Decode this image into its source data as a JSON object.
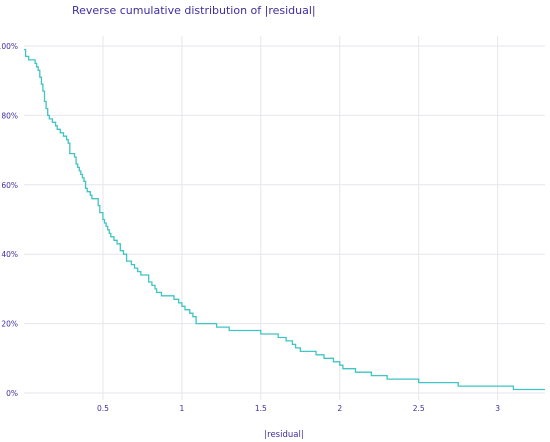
{
  "chart_data": {
    "type": "line",
    "title": "Reverse cumulative distribution of |residual|",
    "xlabel": "|residual|",
    "ylabel": "",
    "xlim": [
      0.0,
      3.3
    ],
    "ylim": [
      0,
      100
    ],
    "grid": true,
    "x_ticks": [
      {
        "value": 0.5,
        "label": "0.5"
      },
      {
        "value": 1.0,
        "label": "1"
      },
      {
        "value": 1.5,
        "label": "1.5"
      },
      {
        "value": 2.0,
        "label": "2"
      },
      {
        "value": 2.5,
        "label": "2.5"
      },
      {
        "value": 3.0,
        "label": "3"
      }
    ],
    "y_ticks": [
      {
        "value": 0,
        "label": "0%"
      },
      {
        "value": 20,
        "label": "20%"
      },
      {
        "value": 40,
        "label": "40%"
      },
      {
        "value": 60,
        "label": "60%"
      },
      {
        "value": 80,
        "label": "80%"
      },
      {
        "value": 100,
        "label": "100%"
      }
    ],
    "series": [
      {
        "name": "",
        "color": "#40c4c4",
        "step": true,
        "points": [
          [
            0.0,
            99
          ],
          [
            0.01,
            97
          ],
          [
            0.03,
            96
          ],
          [
            0.07,
            95
          ],
          [
            0.08,
            94
          ],
          [
            0.09,
            93
          ],
          [
            0.1,
            91
          ],
          [
            0.11,
            89
          ],
          [
            0.12,
            87
          ],
          [
            0.13,
            84
          ],
          [
            0.14,
            82
          ],
          [
            0.15,
            80
          ],
          [
            0.16,
            79
          ],
          [
            0.18,
            78
          ],
          [
            0.2,
            77
          ],
          [
            0.21,
            76
          ],
          [
            0.23,
            75
          ],
          [
            0.25,
            74
          ],
          [
            0.27,
            73
          ],
          [
            0.28,
            72
          ],
          [
            0.29,
            69
          ],
          [
            0.32,
            68
          ],
          [
            0.33,
            66
          ],
          [
            0.34,
            65
          ],
          [
            0.35,
            64
          ],
          [
            0.36,
            63
          ],
          [
            0.37,
            62
          ],
          [
            0.38,
            61
          ],
          [
            0.39,
            59
          ],
          [
            0.4,
            58
          ],
          [
            0.42,
            57
          ],
          [
            0.43,
            56
          ],
          [
            0.47,
            54
          ],
          [
            0.48,
            52
          ],
          [
            0.5,
            50
          ],
          [
            0.51,
            49
          ],
          [
            0.52,
            48
          ],
          [
            0.53,
            47
          ],
          [
            0.54,
            46
          ],
          [
            0.55,
            45
          ],
          [
            0.57,
            44
          ],
          [
            0.59,
            43
          ],
          [
            0.61,
            41
          ],
          [
            0.63,
            40
          ],
          [
            0.65,
            38
          ],
          [
            0.68,
            37
          ],
          [
            0.7,
            36
          ],
          [
            0.72,
            35
          ],
          [
            0.74,
            34
          ],
          [
            0.79,
            32
          ],
          [
            0.81,
            31
          ],
          [
            0.83,
            30
          ],
          [
            0.84,
            29
          ],
          [
            0.87,
            28
          ],
          [
            0.93,
            28
          ],
          [
            0.95,
            27
          ],
          [
            0.98,
            26
          ],
          [
            1.0,
            25
          ],
          [
            1.02,
            24
          ],
          [
            1.05,
            23
          ],
          [
            1.07,
            22
          ],
          [
            1.09,
            20
          ],
          [
            1.2,
            20
          ],
          [
            1.22,
            19
          ],
          [
            1.3,
            18
          ],
          [
            1.49,
            18
          ],
          [
            1.5,
            17
          ],
          [
            1.6,
            17
          ],
          [
            1.61,
            16
          ],
          [
            1.66,
            15
          ],
          [
            1.7,
            14
          ],
          [
            1.72,
            13
          ],
          [
            1.75,
            12
          ],
          [
            1.85,
            11
          ],
          [
            1.9,
            10
          ],
          [
            1.96,
            9
          ],
          [
            2.0,
            8
          ],
          [
            2.02,
            7
          ],
          [
            2.1,
            6
          ],
          [
            2.15,
            6
          ],
          [
            2.2,
            5
          ],
          [
            2.3,
            4
          ],
          [
            2.45,
            4
          ],
          [
            2.5,
            3
          ],
          [
            2.75,
            2
          ],
          [
            3.1,
            1
          ],
          [
            3.3,
            1
          ]
        ]
      }
    ]
  }
}
